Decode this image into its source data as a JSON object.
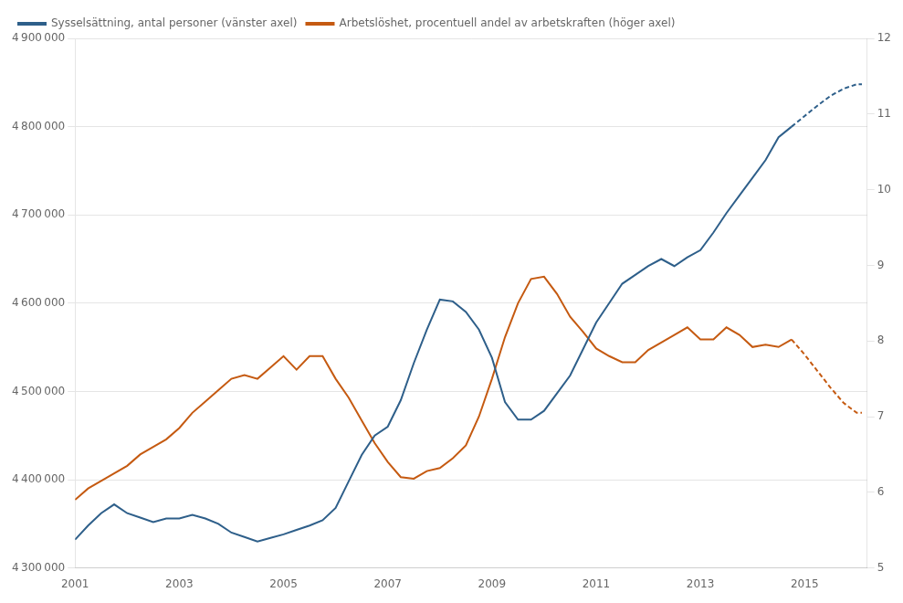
{
  "chart_data": {
    "type": "line",
    "x": [
      2001.0,
      2001.25,
      2001.5,
      2001.75,
      2002.0,
      2002.25,
      2002.5,
      2002.75,
      2003.0,
      2003.25,
      2003.5,
      2003.75,
      2004.0,
      2004.25,
      2004.5,
      2004.75,
      2005.0,
      2005.25,
      2005.5,
      2005.75,
      2006.0,
      2006.25,
      2006.5,
      2006.75,
      2007.0,
      2007.25,
      2007.5,
      2007.75,
      2008.0,
      2008.25,
      2008.5,
      2008.75,
      2009.0,
      2009.25,
      2009.5,
      2009.75,
      2010.0,
      2010.25,
      2010.5,
      2010.75,
      2011.0,
      2011.25,
      2011.5,
      2011.75,
      2012.0,
      2012.25,
      2012.5,
      2012.75,
      2013.0,
      2013.25,
      2013.5,
      2013.75,
      2014.0,
      2014.25,
      2014.5,
      2014.75,
      2015.0,
      2015.25,
      2015.5,
      2015.75,
      2016.0,
      2016.1
    ],
    "xlim": [
      2001.0,
      2016.2
    ],
    "xticks": [
      2001,
      2003,
      2005,
      2007,
      2009,
      2011,
      2013,
      2015
    ],
    "ylim": [
      4300000,
      4900000
    ],
    "yticks": [
      {
        "value": 4300000,
        "label": "4 300 000"
      },
      {
        "value": 4400000,
        "label": "4 400 000"
      },
      {
        "value": 4500000,
        "label": "4 500 000"
      },
      {
        "value": 4600000,
        "label": "4 600 000"
      },
      {
        "value": 4700000,
        "label": "4 700 000"
      },
      {
        "value": 4800000,
        "label": "4 800 000"
      },
      {
        "value": 4900000,
        "label": "4 900 000"
      }
    ],
    "y2lim": [
      5,
      12
    ],
    "y2ticks": [
      5,
      6,
      7,
      8,
      9,
      10,
      11,
      12
    ],
    "grid": true,
    "legend": "upper left",
    "series": [
      {
        "name": "Sysselsättning, antal personer (vänster axel)",
        "color": "#2e5f8a",
        "line_style": "solid",
        "values": [
          4332000,
          4348000,
          4362000,
          4372000,
          4362000,
          4357000,
          4352000,
          4356000,
          4356000,
          4360000,
          4356000,
          4350000,
          4340000,
          4335000,
          4330000,
          4334000,
          4338000,
          4343000,
          4348000,
          4354000,
          4368000,
          4398000,
          4428000,
          4450000,
          4460000,
          4490000,
          4532000,
          4570000,
          4604000,
          4602000,
          4590000,
          4570000,
          4538000,
          4488000,
          4468000,
          4468000,
          4478000,
          4498000,
          4518000,
          4548000,
          4578000,
          4600000,
          4622000,
          4632000,
          4642000,
          4650000,
          4642000,
          4652000,
          4660000,
          4680000,
          4702000,
          4722000,
          4742000,
          4762000,
          4788000,
          4800000,
          null,
          null,
          null,
          null,
          null,
          null
        ]
      },
      {
        "color": "#2e5f8a",
        "line_style": "dashed",
        "values": [
          null,
          null,
          null,
          null,
          null,
          null,
          null,
          null,
          null,
          null,
          null,
          null,
          null,
          null,
          null,
          null,
          null,
          null,
          null,
          null,
          null,
          null,
          null,
          null,
          null,
          null,
          null,
          null,
          null,
          null,
          null,
          null,
          null,
          null,
          null,
          null,
          null,
          null,
          null,
          null,
          null,
          null,
          null,
          null,
          null,
          null,
          null,
          null,
          null,
          null,
          null,
          null,
          null,
          null,
          null,
          4800000,
          4812000,
          4824000,
          4835000,
          4843000,
          4848000,
          4848000
        ]
      },
      {
        "name": "Arbetslöshet, procentuell andel av arbetskraften (höger axel)",
        "color": "#c55a11",
        "line_style": "solid",
        "axis": "y2",
        "values": [
          5.9,
          6.05,
          6.15,
          6.25,
          6.35,
          6.5,
          6.6,
          6.7,
          6.85,
          7.05,
          7.2,
          7.35,
          7.5,
          7.55,
          7.5,
          7.65,
          7.8,
          7.62,
          7.8,
          7.8,
          7.5,
          7.25,
          6.95,
          6.65,
          6.4,
          6.2,
          6.18,
          6.28,
          6.32,
          6.45,
          6.62,
          7.0,
          7.5,
          8.05,
          8.5,
          8.82,
          8.85,
          8.62,
          8.32,
          8.12,
          7.9,
          7.8,
          7.72,
          7.72,
          7.88,
          7.98,
          8.08,
          8.18,
          8.02,
          8.02,
          8.18,
          8.08,
          7.92,
          7.95,
          7.92,
          8.02,
          null,
          null,
          null,
          null,
          null,
          null
        ]
      },
      {
        "color": "#c55a11",
        "line_style": "dashed",
        "axis": "y2",
        "values": [
          null,
          null,
          null,
          null,
          null,
          null,
          null,
          null,
          null,
          null,
          null,
          null,
          null,
          null,
          null,
          null,
          null,
          null,
          null,
          null,
          null,
          null,
          null,
          null,
          null,
          null,
          null,
          null,
          null,
          null,
          null,
          null,
          null,
          null,
          null,
          null,
          null,
          null,
          null,
          null,
          null,
          null,
          null,
          null,
          null,
          null,
          null,
          null,
          null,
          null,
          null,
          null,
          null,
          null,
          null,
          8.02,
          7.82,
          7.6,
          7.38,
          7.18,
          7.05,
          7.05
        ]
      }
    ]
  }
}
